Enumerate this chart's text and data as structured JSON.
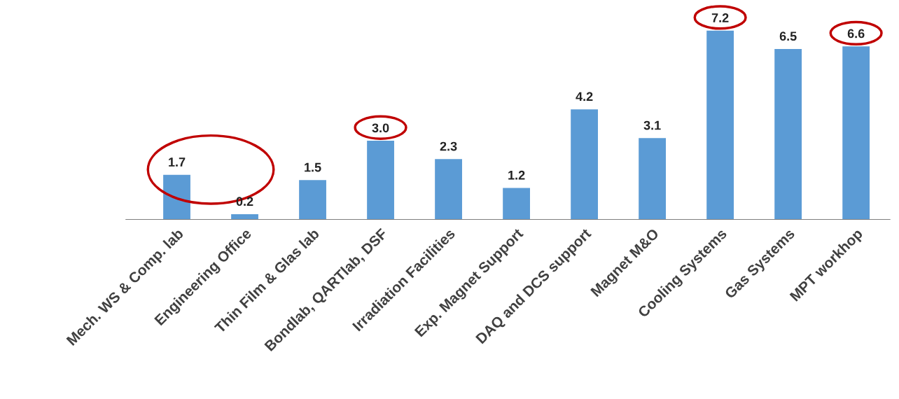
{
  "chart_data": {
    "type": "bar",
    "categories": [
      "Mech. WS & Comp. lab",
      "Engineering Office",
      "Thin Film & Glas lab",
      "Bondlab, QARTlab, DSF",
      "Irradiation Facilities",
      "Exp. Magnet Support",
      "DAQ and DCS support",
      "Magnet M&O",
      "Cooling Systems",
      "Gas Systems",
      "MPT workhop"
    ],
    "values": [
      1.7,
      0.2,
      1.5,
      3.0,
      2.3,
      1.2,
      4.2,
      3.1,
      7.2,
      6.5,
      6.6
    ],
    "value_labels": [
      "1.7",
      "0.2",
      "1.5",
      "3.0",
      "2.3",
      "1.2",
      "4.2",
      "3.1",
      "7.2",
      "6.5",
      "6.6"
    ],
    "color": "#5b9bd5",
    "grid": false,
    "legend": false
  }
}
